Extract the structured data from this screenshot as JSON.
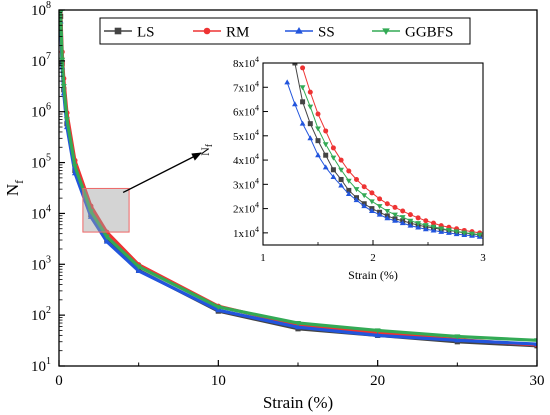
{
  "chart_data": [
    {
      "id": "main",
      "type": "line",
      "xlabel": "Strain (%)",
      "ylabel": "N",
      "ylabel_sub": "f",
      "xlim": [
        0,
        30
      ],
      "ylim": [
        10,
        100000000
      ],
      "yscale": "log",
      "x_ticks": [
        0,
        10,
        20,
        30
      ],
      "x_tick_labels": [
        "0",
        "10",
        "20",
        "30"
      ],
      "y_ticks": [
        10,
        100,
        1000,
        10000,
        100000,
        1000000,
        10000000,
        100000000
      ],
      "y_tick_labels": [
        {
          "base": "10",
          "exp": "1"
        },
        {
          "base": "10",
          "exp": "2"
        },
        {
          "base": "10",
          "exp": "3"
        },
        {
          "base": "10",
          "exp": "4"
        },
        {
          "base": "10",
          "exp": "5"
        },
        {
          "base": "10",
          "exp": "6"
        },
        {
          "base": "10",
          "exp": "7"
        },
        {
          "base": "10",
          "exp": "8"
        }
      ],
      "legend_position": "top-right",
      "grid": false,
      "zoom_region": {
        "x": [
          1.5,
          4.4
        ],
        "y": [
          4300,
          31000
        ]
      },
      "series": [
        {
          "name": "LS",
          "color": "#444444",
          "marker": "square",
          "x": [
            0.1,
            0.2,
            0.3,
            0.5,
            1,
            2,
            3,
            5,
            10,
            15,
            20,
            25,
            30
          ],
          "values": [
            75000000,
            9000000,
            2700000,
            580000,
            70000,
            9400,
            3000,
            760,
            120,
            54,
            40,
            30,
            25
          ]
        },
        {
          "name": "RM",
          "color": "#ee3333",
          "marker": "circle",
          "x": [
            0.1,
            0.2,
            0.3,
            0.5,
            1,
            2,
            3,
            5,
            10,
            15,
            20,
            25,
            30
          ],
          "values": [
            130000000,
            15000000,
            4500000,
            950000,
            110000,
            14000,
            4300,
            980,
            150,
            64,
            45,
            33,
            26
          ]
        },
        {
          "name": "SS",
          "color": "#2255dd",
          "marker": "triangle-up",
          "x": [
            0.1,
            0.2,
            0.3,
            0.5,
            1,
            2,
            3,
            5,
            10,
            15,
            20,
            25,
            30
          ],
          "values": [
            60000000,
            7500000,
            2300000,
            500000,
            62000,
            8600,
            2800,
            740,
            125,
            58,
            40,
            32,
            27
          ]
        },
        {
          "name": "GGBFS",
          "color": "#33aa55",
          "marker": "triangle-down",
          "x": [
            0.1,
            0.2,
            0.3,
            0.5,
            1,
            2,
            3,
            5,
            10,
            15,
            20,
            25,
            30
          ],
          "values": [
            90000000,
            10500000,
            3200000,
            700000,
            85000,
            11000,
            3500,
            900,
            145,
            70,
            50,
            38,
            32
          ]
        }
      ]
    },
    {
      "id": "inset",
      "type": "line",
      "xlabel": "Strain (%)",
      "ylabel": "N",
      "ylabel_sub": "f",
      "xlim": [
        1,
        3
      ],
      "ylim": [
        5000,
        80000
      ],
      "x_ticks": [
        1,
        2,
        3
      ],
      "x_tick_labels": [
        "1",
        "2",
        "3"
      ],
      "y_ticks": [
        10000,
        20000,
        30000,
        40000,
        50000,
        60000,
        70000,
        80000
      ],
      "y_tick_labels": [
        {
          "base": "1x10",
          "exp": "4"
        },
        {
          "base": "2x10",
          "exp": "4"
        },
        {
          "base": "3x10",
          "exp": "4"
        },
        {
          "base": "4x10",
          "exp": "4"
        },
        {
          "base": "5x10",
          "exp": "4"
        },
        {
          "base": "6x10",
          "exp": "4"
        },
        {
          "base": "7x10",
          "exp": "4"
        },
        {
          "base": "8x10",
          "exp": "4"
        }
      ],
      "series": [
        {
          "name": "LS",
          "color": "#444444",
          "marker": "square",
          "x": [
            1.29,
            1.36,
            1.43,
            1.5,
            1.57,
            1.64,
            1.71,
            1.78,
            1.85,
            1.92,
            1.99,
            2.06,
            2.13,
            2.2,
            2.27,
            2.34,
            2.41,
            2.48,
            2.55,
            2.62,
            2.69,
            2.76,
            2.83,
            2.9,
            2.97
          ],
          "values": [
            80000,
            64000,
            55000,
            48000,
            42000,
            36000,
            32000,
            27500,
            24500,
            22000,
            20000,
            18500,
            17000,
            15800,
            15000,
            14000,
            13200,
            12500,
            12000,
            11500,
            11000,
            10500,
            10000,
            9500,
            9200
          ]
        },
        {
          "name": "RM",
          "color": "#ee3333",
          "marker": "circle",
          "x": [
            1.36,
            1.43,
            1.5,
            1.57,
            1.64,
            1.71,
            1.78,
            1.85,
            1.92,
            1.99,
            2.06,
            2.13,
            2.2,
            2.27,
            2.34,
            2.41,
            2.48,
            2.55,
            2.62,
            2.69,
            2.76,
            2.83,
            2.9,
            2.97
          ],
          "values": [
            78000,
            68000,
            59000,
            52000,
            45000,
            40000,
            35500,
            32000,
            29000,
            26500,
            24000,
            22000,
            20500,
            19000,
            17500,
            16200,
            15000,
            14000,
            13000,
            12300,
            11700,
            11000,
            10500,
            10000
          ]
        },
        {
          "name": "SS",
          "color": "#2255dd",
          "marker": "triangle-up",
          "x": [
            1.22,
            1.29,
            1.36,
            1.43,
            1.5,
            1.57,
            1.64,
            1.71,
            1.78,
            1.85,
            1.92,
            1.99,
            2.06,
            2.13,
            2.2,
            2.27,
            2.34,
            2.41,
            2.48,
            2.55,
            2.62,
            2.69,
            2.76,
            2.83,
            2.9,
            2.97
          ],
          "values": [
            72000,
            63000,
            55000,
            49000,
            42000,
            37000,
            33000,
            29500,
            26000,
            23500,
            21000,
            19000,
            17500,
            16000,
            15000,
            14000,
            13000,
            12200,
            11500,
            11000,
            10400,
            10000,
            9500,
            9100,
            8800,
            8400
          ]
        },
        {
          "name": "GGBFS",
          "color": "#33aa55",
          "marker": "triangle-down",
          "x": [
            1.36,
            1.43,
            1.5,
            1.57,
            1.64,
            1.71,
            1.78,
            1.85,
            1.92,
            1.99,
            2.06,
            2.13,
            2.2,
            2.27,
            2.34,
            2.41,
            2.48,
            2.55,
            2.62,
            2.69,
            2.76,
            2.83,
            2.9,
            2.97
          ],
          "values": [
            70000,
            62000,
            53000,
            46500,
            41000,
            36000,
            31500,
            28000,
            25500,
            23000,
            21000,
            19000,
            17500,
            16500,
            15000,
            14000,
            13200,
            12500,
            11800,
            11200,
            10600,
            10100,
            9700,
            9300
          ]
        }
      ]
    }
  ]
}
